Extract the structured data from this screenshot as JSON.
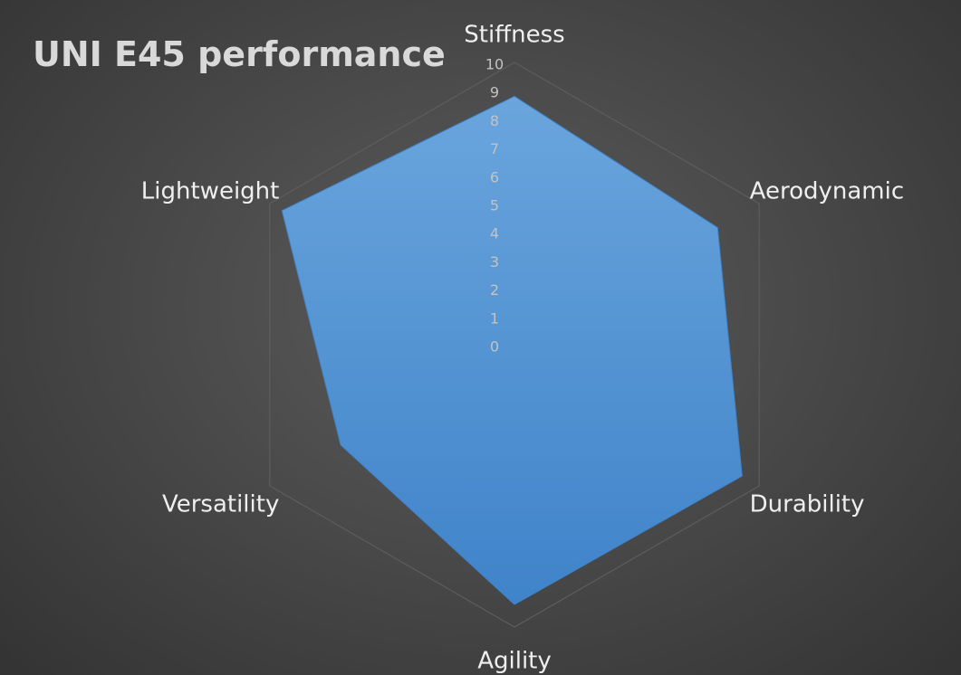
{
  "chart_data": {
    "type": "radar",
    "title": "UNI E45 performance",
    "categories": [
      "Stiffness",
      "Aerodynamic",
      "Durability",
      "Agility",
      "Versatility",
      "Lightweight"
    ],
    "series": [
      {
        "values": [
          8.8,
          8.3,
          9.3,
          9.2,
          7.1,
          9.5
        ]
      }
    ],
    "rlim": [
      0,
      10
    ],
    "ticks": [
      0,
      1,
      2,
      3,
      4,
      5,
      6,
      7,
      8,
      9,
      10
    ],
    "grid": true,
    "colors": {
      "fill": "#5b9bd5",
      "fill_dark": "#3f83c9",
      "fill_light": "#6aa5dd",
      "grid_line": "#5d5d5d",
      "axis_text": "#efefef",
      "tick_text": "#c3c3c3",
      "title_text": "#d9d9d9"
    }
  }
}
